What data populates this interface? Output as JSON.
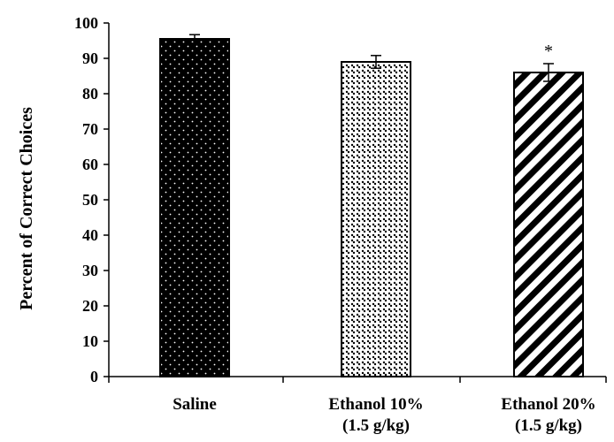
{
  "chart_data": {
    "type": "bar",
    "title": "",
    "xlabel": "",
    "ylabel": "Percent of Correct Choices",
    "ylim": [
      0,
      100
    ],
    "ytick_step": 10,
    "yticks": [
      "0",
      "10",
      "20",
      "30",
      "40",
      "50",
      "60",
      "70",
      "80",
      "90",
      "100"
    ],
    "categories": [
      [
        "Saline"
      ],
      [
        "Ethanol 10%",
        "(1.5 g/kg)"
      ],
      [
        "Ethanol 20%",
        "(1.5 g/kg)"
      ]
    ],
    "values": [
      95.5,
      89.0,
      86.0
    ],
    "errors": [
      1.2,
      1.8,
      2.5
    ],
    "patterns": [
      "dots-on-black",
      "checker-dots",
      "diagonal-stripes"
    ],
    "annotations": [
      "",
      "",
      "*"
    ],
    "grid": false,
    "legend": "none",
    "colors": {
      "bar_border": "#000000",
      "dark_fill": "#000000",
      "light_fill": "#ffffff"
    }
  }
}
